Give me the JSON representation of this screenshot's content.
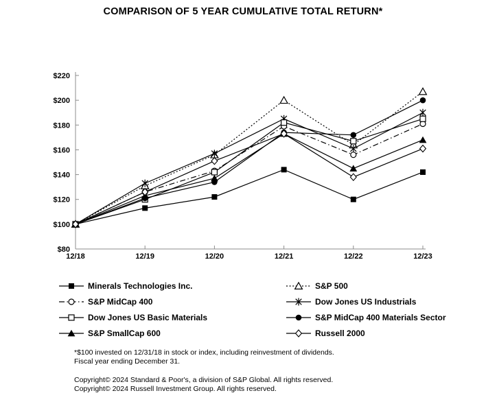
{
  "title": "COMPARISON OF 5 YEAR CUMULATIVE TOTAL RETURN*",
  "colors": {
    "series": "#000000",
    "axis": "#8c8c8c",
    "text": "#000000",
    "background": "#ffffff"
  },
  "chart_data": {
    "type": "line",
    "title": "COMPARISON OF 5 YEAR CUMULATIVE TOTAL RETURN*",
    "xlabel": "",
    "ylabel": "",
    "categories": [
      "12/18",
      "12/19",
      "12/20",
      "12/21",
      "12/22",
      "12/23"
    ],
    "y_ticks": [
      "$80",
      "$100",
      "$120",
      "$140",
      "$160",
      "$180",
      "$200",
      "$220"
    ],
    "ylim": [
      80,
      220
    ],
    "grid": false,
    "legend_position": "below-plot-two-columns",
    "series": [
      {
        "name": "Minerals Technologies Inc.",
        "marker": "filled-square",
        "line_style": "solid",
        "values": [
          100,
          113,
          122,
          144,
          120,
          142
        ]
      },
      {
        "name": "S&P 500",
        "marker": "open-triangle",
        "line_style": "dotted",
        "values": [
          100,
          131,
          156,
          200,
          164,
          207
        ]
      },
      {
        "name": "S&P MidCap 400",
        "marker": "open-circle",
        "line_style": "dash-dot",
        "values": [
          100,
          126,
          143,
          179,
          156,
          181
        ]
      },
      {
        "name": "Dow Jones US Industrials",
        "marker": "asterisk",
        "line_style": "solid",
        "values": [
          100,
          133,
          157,
          185,
          161,
          190
        ]
      },
      {
        "name": "Dow Jones US Basic Materials",
        "marker": "open-square",
        "line_style": "solid",
        "values": [
          100,
          120,
          142,
          182,
          167,
          185
        ]
      },
      {
        "name": "S&P MidCap 400 Materials Sector",
        "marker": "filled-circle",
        "line_style": "solid",
        "values": [
          100,
          121,
          134,
          174,
          172,
          200
        ]
      },
      {
        "name": "S&P SmallCap 600",
        "marker": "filled-triangle",
        "line_style": "solid",
        "values": [
          100,
          123,
          137,
          173,
          145,
          168
        ]
      },
      {
        "name": "Russell 2000",
        "marker": "open-diamond",
        "line_style": "solid",
        "values": [
          100,
          126,
          151,
          173,
          138,
          161
        ]
      }
    ],
    "legend_columns": {
      "left": [
        0,
        2,
        4,
        6
      ],
      "right": [
        1,
        3,
        5,
        7
      ]
    }
  },
  "footnotes": [
    "*$100 invested on 12/31/18 in stock or index, including reinvestment of dividends.",
    "Fiscal year ending December 31.",
    "Copyright© 2024 Standard & Poor's, a division of S&P Global. All rights reserved.",
    "Copyright© 2024 Russell Investment Group. All rights reserved."
  ]
}
